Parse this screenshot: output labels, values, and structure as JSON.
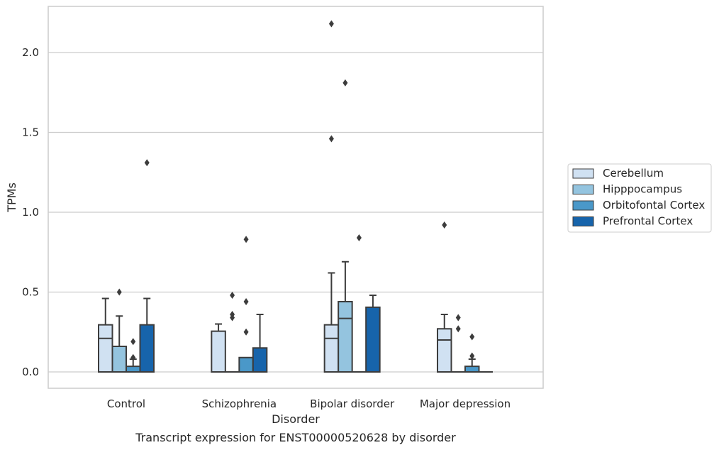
{
  "chart_data": {
    "type": "boxplot",
    "caption": "Transcript expression for ENST00000520628 by disorder",
    "xlabel": "Disorder",
    "ylabel": "TPMs",
    "ylim": [
      -0.1,
      2.3
    ],
    "yticks": [
      0.0,
      0.5,
      1.0,
      1.5,
      2.0
    ],
    "ytick_labels": [
      "0.0",
      "0.5",
      "1.0",
      "1.5",
      "2.0"
    ],
    "grid": "horizontal",
    "legend_position": "right",
    "categories": [
      "Control",
      "Schizophrenia",
      "Bipolar disorder",
      "Major depression"
    ],
    "series": [
      {
        "name": "Cerebellum",
        "color": "#d0e1f2",
        "boxes": [
          {
            "q1": 0.0,
            "median": 0.21,
            "q3": 0.295,
            "whisker_low": 0.0,
            "whisker_high": 0.46,
            "outliers": []
          },
          {
            "q1": 0.0,
            "median": 0.0,
            "q3": 0.255,
            "whisker_low": 0.0,
            "whisker_high": 0.3,
            "outliers": []
          },
          {
            "q1": 0.0,
            "median": 0.21,
            "q3": 0.295,
            "whisker_low": 0.0,
            "whisker_high": 0.62,
            "outliers": [
              2.18,
              1.46
            ]
          },
          {
            "q1": 0.0,
            "median": 0.2,
            "q3": 0.27,
            "whisker_low": 0.0,
            "whisker_high": 0.36,
            "outliers": [
              0.92
            ]
          }
        ]
      },
      {
        "name": "Hipppocampus",
        "color": "#94c4df",
        "boxes": [
          {
            "q1": 0.0,
            "median": 0.0,
            "q3": 0.16,
            "whisker_low": 0.0,
            "whisker_high": 0.35,
            "outliers": [
              0.5
            ]
          },
          {
            "q1": 0.0,
            "median": 0.0,
            "q3": 0.0,
            "whisker_low": 0.0,
            "whisker_high": 0.0,
            "outliers": [
              0.48,
              0.36,
              0.34
            ]
          },
          {
            "q1": 0.0,
            "median": 0.335,
            "q3": 0.44,
            "whisker_low": 0.0,
            "whisker_high": 0.69,
            "outliers": [
              1.81
            ]
          },
          {
            "q1": 0.0,
            "median": 0.0,
            "q3": 0.0,
            "whisker_low": 0.0,
            "whisker_high": 0.0,
            "outliers": [
              0.34,
              0.27
            ]
          }
        ]
      },
      {
        "name": "Orbitofontal Cortex",
        "color": "#4a98c9",
        "boxes": [
          {
            "q1": 0.0,
            "median": 0.0,
            "q3": 0.035,
            "whisker_low": 0.0,
            "whisker_high": 0.08,
            "outliers": [
              0.19,
              0.09
            ]
          },
          {
            "q1": 0.0,
            "median": 0.0,
            "q3": 0.09,
            "whisker_low": 0.0,
            "whisker_high": 0.09,
            "outliers": [
              0.83,
              0.44,
              0.25
            ]
          },
          {
            "q1": 0.0,
            "median": 0.0,
            "q3": 0.0,
            "whisker_low": 0.0,
            "whisker_high": 0.0,
            "outliers": [
              0.84
            ]
          },
          {
            "q1": 0.0,
            "median": 0.0,
            "q3": 0.035,
            "whisker_low": 0.0,
            "whisker_high": 0.08,
            "outliers": [
              0.22,
              0.1
            ]
          }
        ]
      },
      {
        "name": "Prefrontal Cortex",
        "color": "#1764ab",
        "boxes": [
          {
            "q1": 0.0,
            "median": 0.0,
            "q3": 0.295,
            "whisker_low": 0.0,
            "whisker_high": 0.46,
            "outliers": [
              1.31
            ]
          },
          {
            "q1": 0.0,
            "median": 0.0,
            "q3": 0.15,
            "whisker_low": 0.0,
            "whisker_high": 0.36,
            "outliers": []
          },
          {
            "q1": 0.0,
            "median": 0.0,
            "q3": 0.405,
            "whisker_low": 0.0,
            "whisker_high": 0.48,
            "outliers": []
          },
          {
            "q1": 0.0,
            "median": 0.0,
            "q3": 0.0,
            "whisker_low": 0.0,
            "whisker_high": 0.0,
            "outliers": []
          }
        ]
      }
    ]
  }
}
